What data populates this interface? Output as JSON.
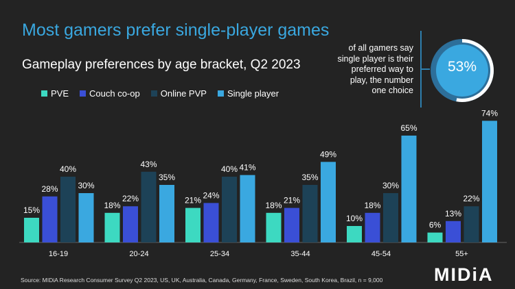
{
  "title": "Most gamers prefer single-player games",
  "callout": {
    "text": "of all gamers say single player is their preferred way to play, the number one choice",
    "value": "53%",
    "fraction": 0.53
  },
  "logo": "MIDiA",
  "source": "Source: MIDiA Research Consumer Survey Q2 2023, US, UK, Australia, Canada, Germany, France, Sweden, South Korea, Brazil, n = 9,000",
  "colors": {
    "background": "#232323",
    "accent": "#3aa8e0"
  },
  "chart_data": {
    "type": "bar",
    "title": "Gameplay preferences by age bracket, Q2 2023",
    "categories": [
      "16-19",
      "20-24",
      "25-34",
      "35-44",
      "45-54",
      "55+"
    ],
    "legend": "top-left",
    "grid": false,
    "ylim": [
      0,
      80
    ],
    "series": [
      {
        "name": "PVE",
        "color": "#3dd9c1",
        "values": [
          15,
          18,
          21,
          18,
          10,
          6
        ]
      },
      {
        "name": "Couch co-op",
        "color": "#3a4fd6",
        "values": [
          28,
          22,
          24,
          21,
          18,
          13
        ]
      },
      {
        "name": "Online PVP",
        "color": "#1d4257",
        "values": [
          40,
          43,
          40,
          35,
          30,
          22
        ]
      },
      {
        "name": "Single player",
        "color": "#3aa8e0",
        "values": [
          30,
          35,
          41,
          49,
          65,
          74
        ]
      }
    ]
  }
}
